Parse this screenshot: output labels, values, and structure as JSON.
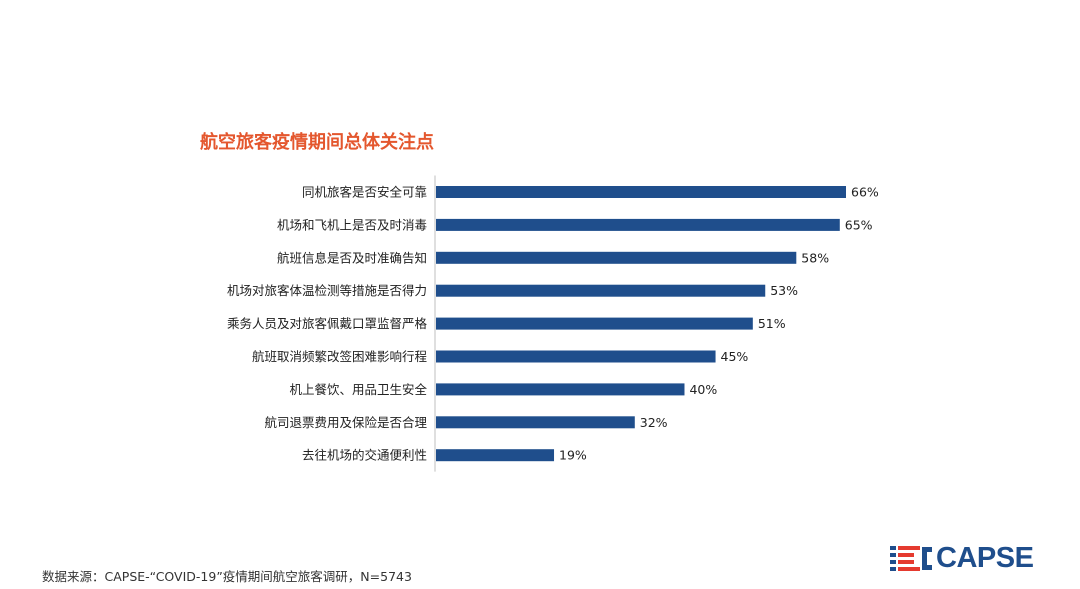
{
  "colors": {
    "bar": "#1f4e8c",
    "title": "#e4572e",
    "label": "#222222",
    "logo_blue": "#1f4e8c",
    "logo_red": "#e53a2f"
  },
  "chart_data": {
    "type": "bar",
    "orientation": "horizontal",
    "title": "航空旅客疫情期间总体关注点",
    "categories": [
      "同机旅客是否安全可靠",
      "机场和飞机上是否及时消毒",
      "航班信息是否及时准确告知",
      "机场对旅客体温检测等措施是否得力",
      "乘务人员及对旅客佩戴口罩监督严格",
      "航班取消频繁改签困难影响行程",
      "机上餐饮、用品卫生安全",
      "航司退票费用及保险是否合理",
      "去往机场的交通便利性"
    ],
    "values": [
      66,
      65,
      58,
      53,
      51,
      45,
      40,
      32,
      19
    ],
    "value_labels": [
      "66%",
      "65%",
      "58%",
      "53%",
      "51%",
      "45%",
      "40%",
      "32%",
      "19%"
    ],
    "unit": "%",
    "grid": false,
    "legend": "none"
  },
  "footer": {
    "source": "数据来源：CAPSE-“COVID-19”疫情期间航空旅客调研，N=5743"
  },
  "logo": {
    "text": "CAPSE",
    "icon": "capse-logo-icon"
  }
}
